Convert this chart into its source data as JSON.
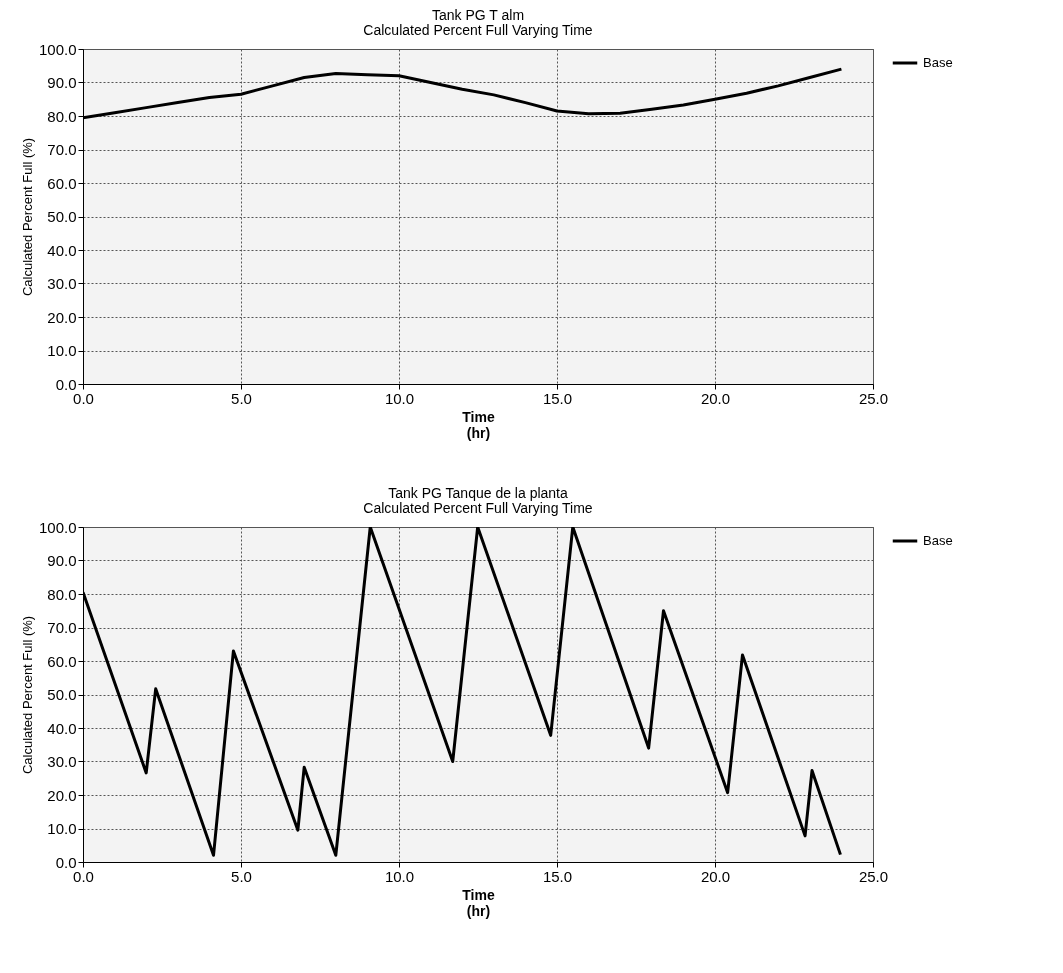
{
  "chart_data": [
    {
      "type": "line",
      "title": "Tank PG T alm",
      "subtitle": "Calculated Percent Full Varying Time",
      "xlabel": "Time\n(hr)",
      "ylabel": "Calculated Percent Full (%)",
      "x": [
        0,
        1,
        2,
        3,
        4,
        5,
        6,
        7,
        8,
        9,
        10,
        11,
        12,
        13,
        14,
        15,
        16,
        17,
        18,
        19,
        20,
        21,
        22,
        23,
        24
      ],
      "series": [
        {
          "name": "Base",
          "color": "#000000",
          "values": [
            79.5,
            81,
            82.5,
            84,
            85.5,
            86.5,
            89,
            91.5,
            92.7,
            92.3,
            92,
            90,
            88,
            86.3,
            84,
            81.5,
            80.7,
            80.8,
            82,
            83.3,
            85,
            86.8,
            89,
            91.5,
            94
          ]
        }
      ],
      "xlim": [
        0,
        25
      ],
      "xticks": [
        {
          "value": 0,
          "label": "0.0"
        },
        {
          "value": 5,
          "label": "5.0"
        },
        {
          "value": 10,
          "label": "10.0"
        },
        {
          "value": 15,
          "label": "15.0"
        },
        {
          "value": 20,
          "label": "20.0"
        },
        {
          "value": 25,
          "label": "25.0"
        }
      ],
      "ylim": [
        0,
        100
      ],
      "yticks": [
        {
          "value": 0,
          "label": "0.0"
        },
        {
          "value": 10,
          "label": "10.0"
        },
        {
          "value": 20,
          "label": "20.0"
        },
        {
          "value": 30,
          "label": "30.0"
        },
        {
          "value": 40,
          "label": "40.0"
        },
        {
          "value": 50,
          "label": "50.0"
        },
        {
          "value": 60,
          "label": "60.0"
        },
        {
          "value": 70,
          "label": "70.0"
        },
        {
          "value": 80,
          "label": "80.0"
        },
        {
          "value": 90,
          "label": "90.0"
        },
        {
          "value": 100,
          "label": "100.0"
        }
      ],
      "grid": true,
      "legend": "top right"
    },
    {
      "type": "line",
      "title": "Tank PG Tanque de la planta",
      "subtitle": "Calculated Percent Full Varying Time",
      "xlabel": "Time\n(hr)",
      "ylabel": "Calculated Percent Full (%)",
      "x": [
        0,
        2.0,
        2.3,
        4.13,
        4.76,
        6.8,
        7.0,
        8.0,
        9.09,
        11.7,
        12.49,
        14.8,
        15.5,
        17.9,
        18.37,
        20.4,
        20.87,
        22.85,
        23.07,
        23.97
      ],
      "series": [
        {
          "name": "Base",
          "color": "#000000",
          "values": [
            80.5,
            26.6,
            51.7,
            2,
            63,
            9.5,
            28.3,
            2,
            100,
            30,
            100,
            37.8,
            100,
            34,
            75,
            20.7,
            61.8,
            7.8,
            27.3,
            2.2
          ]
        }
      ],
      "xlim": [
        0,
        25
      ],
      "xticks": [
        {
          "value": 0,
          "label": "0.0"
        },
        {
          "value": 5,
          "label": "5.0"
        },
        {
          "value": 10,
          "label": "10.0"
        },
        {
          "value": 15,
          "label": "15.0"
        },
        {
          "value": 20,
          "label": "20.0"
        },
        {
          "value": 25,
          "label": "25.0"
        }
      ],
      "ylim": [
        0,
        100
      ],
      "yticks": [
        {
          "value": 0,
          "label": "0.0"
        },
        {
          "value": 10,
          "label": "10.0"
        },
        {
          "value": 20,
          "label": "20.0"
        },
        {
          "value": 30,
          "label": "30.0"
        },
        {
          "value": 40,
          "label": "40.0"
        },
        {
          "value": 50,
          "label": "50.0"
        },
        {
          "value": 60,
          "label": "60.0"
        },
        {
          "value": 70,
          "label": "70.0"
        },
        {
          "value": 80,
          "label": "80.0"
        },
        {
          "value": 90,
          "label": "90.0"
        },
        {
          "value": 100,
          "label": "100.0"
        }
      ],
      "grid": true,
      "legend": "top right"
    }
  ]
}
